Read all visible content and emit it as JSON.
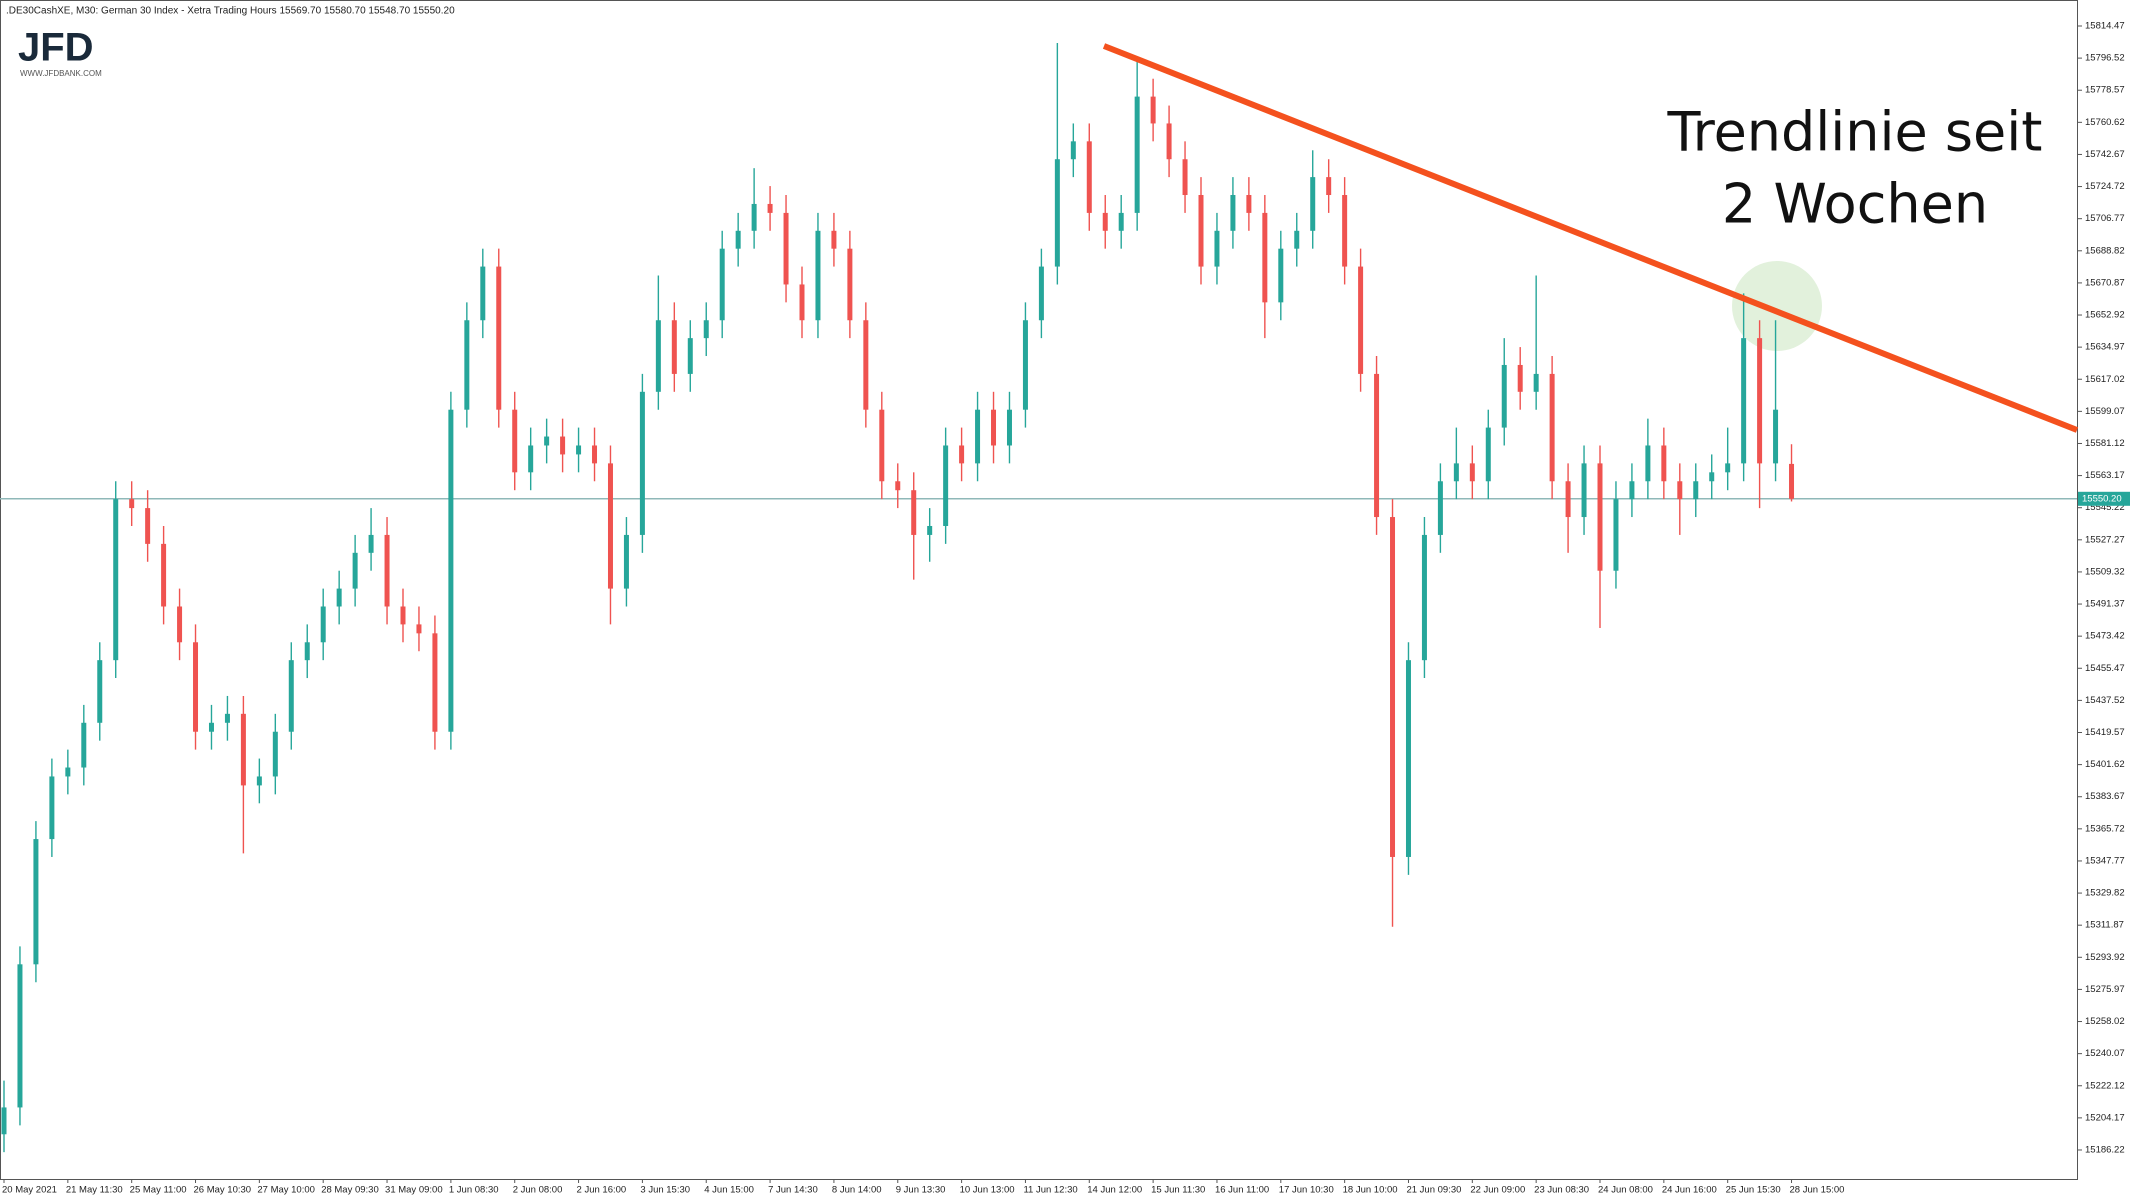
{
  "chart_data": {
    "type": "candlestick",
    "title": ".DE30CashXE, M30:  German 30 Index  - Xetra Trading Hours  15569.70 15580.70 15548.70 15550.20",
    "logo": {
      "text": "JFD",
      "url": "WWW.JFDBANK.COM"
    },
    "annotation": [
      "Trendlinie seit",
      "2 Wochen"
    ],
    "up_color": "#26a69a",
    "down_color": "#ef5350",
    "ylim": [
      15170,
      15829
    ],
    "yticks": [
      15814.47,
      15796.52,
      15778.57,
      15760.62,
      15742.67,
      15724.72,
      15706.77,
      15688.82,
      15670.87,
      15652.92,
      15634.97,
      15617.02,
      15599.07,
      15581.12,
      15563.17,
      15545.22,
      15527.27,
      15509.32,
      15491.37,
      15473.42,
      15455.47,
      15437.52,
      15419.57,
      15401.62,
      15383.67,
      15365.72,
      15347.77,
      15329.82,
      15311.87,
      15293.92,
      15275.97,
      15258.02,
      15240.07,
      15222.12,
      15204.17,
      15186.22
    ],
    "current_price": {
      "value": 15550.2,
      "label": "15550.20"
    },
    "categories": [
      "20 May 2021",
      null,
      null,
      null,
      "21 May 11:30",
      null,
      null,
      null,
      "25 May 11:00",
      null,
      null,
      null,
      "26 May 10:30",
      null,
      null,
      null,
      "27 May 10:00",
      null,
      null,
      null,
      "28 May 09:30",
      null,
      null,
      null,
      "31 May 09:00",
      null,
      null,
      null,
      "1 Jun 08:30",
      null,
      null,
      null,
      "2 Jun 08:00",
      null,
      null,
      null,
      "2 Jun 16:00",
      null,
      null,
      null,
      "3 Jun 15:30",
      null,
      null,
      null,
      "4 Jun 15:00",
      null,
      null,
      null,
      "7 Jun 14:30",
      null,
      null,
      null,
      "8 Jun 14:00",
      null,
      null,
      null,
      "9 Jun 13:30",
      null,
      null,
      null,
      "10 Jun 13:00",
      null,
      null,
      null,
      "11 Jun 12:30",
      null,
      null,
      null,
      "14 Jun 12:00",
      null,
      null,
      null,
      "15 Jun 11:30",
      null,
      null,
      null,
      "16 Jun 11:00",
      null,
      null,
      null,
      "17 Jun 10:30",
      null,
      null,
      null,
      "18 Jun 10:00",
      null,
      null,
      null,
      "21 Jun 09:30",
      null,
      null,
      null,
      "22 Jun 09:00",
      null,
      null,
      null,
      "23 Jun 08:30",
      null,
      null,
      null,
      "24 Jun 08:00",
      null,
      null,
      null,
      "24 Jun 16:00",
      null,
      null,
      null,
      "25 Jun 15:30",
      null,
      null,
      null,
      "28 Jun 15:00"
    ],
    "open": [
      15195,
      15210,
      15290,
      15360,
      15395,
      15400,
      15425,
      15460,
      15550,
      15545,
      15525,
      15490,
      15470,
      15420,
      15425,
      15430,
      15390,
      15395,
      15420,
      15460,
      15470,
      15490,
      15500,
      15520,
      15530,
      15490,
      15480,
      15475,
      15420,
      15600,
      15650,
      15680,
      15600,
      15565,
      15580,
      15585,
      15575,
      15580,
      15570,
      15500,
      15530,
      15610,
      15650,
      15620,
      15640,
      15650,
      15690,
      15700,
      15715,
      15710,
      15670,
      15650,
      15700,
      15690,
      15650,
      15600,
      15560,
      15555,
      15530,
      15535,
      15580,
      15570,
      15600,
      15580,
      15600,
      15650,
      15680,
      15740,
      15750,
      15710,
      15700,
      15710,
      15775,
      15760,
      15740,
      15720,
      15680,
      15700,
      15720,
      15710,
      15660,
      15690,
      15700,
      15730,
      15720,
      15680,
      15620,
      15540,
      15350,
      15460,
      15530,
      15560,
      15570,
      15560,
      15590,
      15625,
      15610,
      15620,
      15560,
      15540,
      15570,
      15510,
      15550,
      15560,
      15580,
      15560,
      15550,
      15560,
      15565,
      15570,
      15640,
      15570,
      15569.7
    ],
    "high": [
      15225,
      15300,
      15370,
      15405,
      15410,
      15435,
      15470,
      15560,
      15560,
      15555,
      15535,
      15500,
      15480,
      15435,
      15440,
      15440,
      15405,
      15430,
      15470,
      15480,
      15500,
      15510,
      15530,
      15545,
      15540,
      15500,
      15490,
      15485,
      15610,
      15660,
      15690,
      15690,
      15610,
      15590,
      15595,
      15595,
      15590,
      15590,
      15580,
      15540,
      15620,
      15675,
      15660,
      15650,
      15660,
      15700,
      15710,
      15735,
      15725,
      15720,
      15680,
      15710,
      15710,
      15700,
      15660,
      15610,
      15570,
      15565,
      15545,
      15590,
      15590,
      15610,
      15610,
      15610,
      15660,
      15690,
      15805,
      15760,
      15760,
      15720,
      15720,
      15795,
      15785,
      15770,
      15750,
      15730,
      15710,
      15730,
      15730,
      15720,
      15700,
      15710,
      15745,
      15740,
      15730,
      15690,
      15630,
      15550,
      15470,
      15540,
      15570,
      15590,
      15580,
      15600,
      15640,
      15635,
      15675,
      15630,
      15570,
      15580,
      15580,
      15560,
      15570,
      15595,
      15590,
      15570,
      15570,
      15575,
      15590,
      15665,
      15650,
      15650,
      15580.7
    ],
    "low": [
      15185,
      15200,
      15280,
      15350,
      15385,
      15390,
      15415,
      15450,
      15535,
      15515,
      15480,
      15460,
      15410,
      15410,
      15415,
      15352,
      15380,
      15385,
      15410,
      15450,
      15460,
      15480,
      15490,
      15510,
      15480,
      15470,
      15465,
      15410,
      15410,
      15590,
      15640,
      15590,
      15555,
      15555,
      15570,
      15565,
      15565,
      15560,
      15480,
      15490,
      15520,
      15600,
      15610,
      15610,
      15630,
      15640,
      15680,
      15690,
      15700,
      15660,
      15640,
      15640,
      15680,
      15640,
      15590,
      15550,
      15545,
      15505,
      15515,
      15525,
      15560,
      15560,
      15570,
      15570,
      15590,
      15640,
      15670,
      15730,
      15700,
      15690,
      15690,
      15700,
      15750,
      15730,
      15710,
      15670,
      15670,
      15690,
      15700,
      15640,
      15650,
      15680,
      15690,
      15710,
      15670,
      15610,
      15530,
      15311,
      15340,
      15450,
      15520,
      15550,
      15550,
      15550,
      15580,
      15600,
      15600,
      15550,
      15520,
      15530,
      15478,
      15500,
      15540,
      15550,
      15550,
      15530,
      15540,
      15550,
      15555,
      15560,
      15545,
      15560,
      15548.7
    ],
    "close": [
      15210,
      15290,
      15360,
      15395,
      15400,
      15425,
      15460,
      15550,
      15545,
      15525,
      15490,
      15470,
      15420,
      15425,
      15430,
      15390,
      15395,
      15420,
      15460,
      15470,
      15490,
      15500,
      15520,
      15530,
      15490,
      15480,
      15475,
      15420,
      15600,
      15650,
      15680,
      15600,
      15565,
      15580,
      15585,
      15575,
      15580,
      15570,
      15500,
      15530,
      15610,
      15650,
      15620,
      15640,
      15650,
      15690,
      15700,
      15715,
      15710,
      15670,
      15650,
      15700,
      15690,
      15650,
      15600,
      15560,
      15555,
      15530,
      15535,
      15580,
      15570,
      15600,
      15580,
      15600,
      15650,
      15680,
      15740,
      15750,
      15710,
      15700,
      15710,
      15775,
      15760,
      15740,
      15720,
      15680,
      15700,
      15720,
      15710,
      15660,
      15690,
      15700,
      15730,
      15720,
      15680,
      15620,
      15540,
      15350,
      15460,
      15530,
      15560,
      15570,
      15560,
      15590,
      15625,
      15610,
      15620,
      15560,
      15540,
      15570,
      15510,
      15550,
      15560,
      15580,
      15560,
      15550,
      15560,
      15565,
      15570,
      15640,
      15570,
      15600,
      15550.2
    ]
  }
}
